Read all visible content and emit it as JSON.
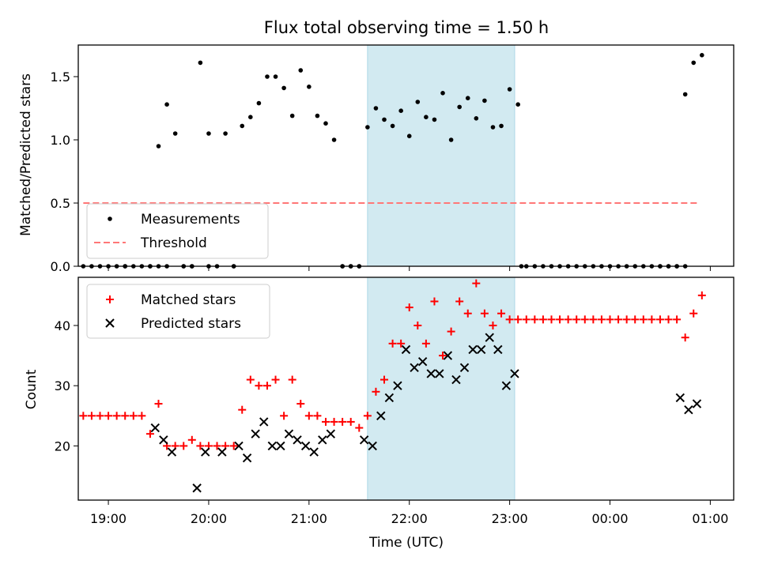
{
  "chart_data": [
    {
      "type": "scatter",
      "title": "Flux total observing time = 1.50 h",
      "xlabel": "",
      "ylabel": "Matched/Predicted stars",
      "ylim": [
        0,
        1.75
      ],
      "yticks": [
        "0.0",
        "0.5",
        "1.0",
        "1.5"
      ],
      "xlim": [
        "18:42",
        "01:14"
      ],
      "legend_position": "lower-left",
      "highlight_span": {
        "x_start": "21:35",
        "x_end": "23:03",
        "color": "#add8e6"
      },
      "threshold": {
        "name": "Threshold",
        "value": 0.5,
        "x_start": "18:45",
        "x_end": "00:52",
        "color": "#ff7777",
        "style": "dashed"
      },
      "series": [
        {
          "name": "Measurements",
          "color": "#000000",
          "marker": "dot",
          "x": [
            "18:45",
            "18:50",
            "18:55",
            "19:00",
            "19:05",
            "19:10",
            "19:15",
            "19:20",
            "19:25",
            "19:30",
            "19:35",
            "19:40",
            "19:45",
            "19:50",
            "19:55",
            "20:00",
            "20:05",
            "20:10",
            "20:15",
            "20:20",
            "20:25",
            "20:30",
            "20:35",
            "20:40",
            "20:45",
            "20:50",
            "20:55",
            "21:00",
            "21:05",
            "21:10",
            "21:15",
            "21:20",
            "21:25",
            "21:30",
            "21:35",
            "21:40",
            "21:45",
            "21:50",
            "21:55",
            "22:00",
            "22:05",
            "22:10",
            "22:15",
            "22:20",
            "22:25",
            "22:30",
            "22:35",
            "22:40",
            "22:45",
            "22:50",
            "22:55",
            "23:00",
            "23:05",
            "23:10",
            "23:15",
            "23:20",
            "23:25",
            "23:30",
            "23:35",
            "23:40",
            "23:45",
            "23:50",
            "23:55",
            "00:00",
            "00:05",
            "00:10",
            "00:15",
            "00:20",
            "00:25",
            "00:30",
            "00:35",
            "00:40",
            "00:45",
            "00:50",
            "00:55"
          ],
          "y": [
            0,
            0,
            0,
            0,
            0,
            0,
            0,
            0,
            0,
            0.95,
            1.28,
            1.05,
            0,
            0,
            1.61,
            1.05,
            0,
            1.05,
            0,
            1.11,
            1.18,
            1.29,
            1.5,
            1.5,
            1.41,
            1.19,
            1.55,
            1.42,
            1.19,
            1.13,
            1.0,
            0,
            0,
            0,
            1.1,
            1.25,
            1.16,
            1.11,
            1.23,
            1.03,
            1.3,
            1.18,
            1.16,
            1.37,
            1.0,
            1.26,
            1.33,
            1.17,
            1.31,
            1.1,
            1.11,
            1.4,
            1.28,
            0,
            0,
            0,
            0,
            0,
            0,
            0,
            0,
            0,
            0,
            0,
            0,
            0,
            0,
            0,
            0,
            0,
            0,
            0,
            1.36,
            1.61,
            1.67
          ],
          "x_extra": [
            "19:10",
            "19:25",
            "19:30",
            "19:35",
            "19:45",
            "19:50",
            "20:00",
            "20:15",
            "21:20",
            "21:25",
            "21:30",
            "23:07",
            "00:30",
            "00:35",
            "00:40",
            "00:45"
          ],
          "y_extra": [
            0,
            0,
            0,
            0,
            0,
            0,
            0,
            0,
            0,
            0,
            0,
            0,
            0,
            0,
            0,
            0
          ]
        }
      ]
    },
    {
      "type": "scatter",
      "title": "",
      "xlabel": "Time (UTC)",
      "ylabel": "Count",
      "ylim": [
        11,
        48
      ],
      "yticks": [
        "20",
        "30",
        "40"
      ],
      "xticks": [
        "19:00",
        "20:00",
        "21:00",
        "22:00",
        "23:00",
        "00:00",
        "01:00"
      ],
      "xlim": [
        "18:42",
        "01:14"
      ],
      "legend_position": "upper-left",
      "highlight_span": {
        "x_start": "21:35",
        "x_end": "23:03",
        "color": "#add8e6"
      },
      "series": [
        {
          "name": "Matched stars",
          "color": "#ff0000",
          "marker": "plus",
          "x": [
            "18:45",
            "18:50",
            "18:55",
            "19:00",
            "19:05",
            "19:10",
            "19:15",
            "19:20",
            "19:25",
            "19:30",
            "19:35",
            "19:40",
            "19:45",
            "19:50",
            "19:55",
            "20:00",
            "20:05",
            "20:10",
            "20:15",
            "20:20",
            "20:25",
            "20:30",
            "20:35",
            "20:40",
            "20:45",
            "20:50",
            "20:55",
            "21:00",
            "21:05",
            "21:10",
            "21:15",
            "21:20",
            "21:25",
            "21:30",
            "21:35",
            "21:40",
            "21:45",
            "21:50",
            "21:55",
            "22:00",
            "22:05",
            "22:10",
            "22:15",
            "22:20",
            "22:25",
            "22:30",
            "22:35",
            "22:40",
            "22:45",
            "22:50",
            "22:55",
            "23:00",
            "23:05",
            "23:10",
            "23:15",
            "23:20",
            "23:25",
            "23:30",
            "23:35",
            "23:40",
            "23:45",
            "23:50",
            "23:55",
            "00:00",
            "00:05",
            "00:10",
            "00:15",
            "00:20",
            "00:25",
            "00:30",
            "00:35",
            "00:40",
            "00:45",
            "00:50",
            "00:55"
          ],
          "y": [
            25,
            25,
            25,
            25,
            25,
            25,
            25,
            25,
            22,
            27,
            20,
            20,
            20,
            21,
            20,
            20,
            20,
            20,
            20,
            26,
            31,
            30,
            30,
            31,
            25,
            31,
            27,
            25,
            25,
            24,
            24,
            24,
            24,
            23,
            25,
            29,
            31,
            37,
            37,
            43,
            40,
            37,
            44,
            35,
            39,
            44,
            42,
            47,
            42,
            40,
            42,
            41,
            41,
            41,
            41,
            41,
            41,
            41,
            41,
            41,
            41,
            41,
            41,
            41,
            41,
            41,
            41,
            41,
            41,
            41,
            41,
            41,
            38,
            42,
            45
          ]
        },
        {
          "name": "Predicted stars",
          "color": "#000000",
          "marker": "x",
          "x": [
            "19:28",
            "19:33",
            "19:38",
            "19:53",
            "19:58",
            "20:08",
            "20:18",
            "20:23",
            "20:28",
            "20:33",
            "20:38",
            "20:43",
            "20:48",
            "20:53",
            "20:58",
            "21:03",
            "21:08",
            "21:13",
            "21:33",
            "21:38",
            "21:43",
            "21:48",
            "21:53",
            "21:58",
            "22:03",
            "22:08",
            "22:13",
            "22:18",
            "22:23",
            "22:28",
            "22:33",
            "22:38",
            "22:43",
            "22:48",
            "22:53",
            "22:58",
            "23:03",
            "00:42",
            "00:47",
            "00:52"
          ],
          "y": [
            23,
            21,
            19,
            13,
            19,
            19,
            20,
            18,
            22,
            24,
            20,
            20,
            22,
            21,
            20,
            19,
            21,
            22,
            21,
            20,
            25,
            28,
            30,
            36,
            33,
            34,
            32,
            32,
            35,
            31,
            33,
            36,
            36,
            38,
            36,
            30,
            32,
            28,
            26,
            27
          ]
        }
      ]
    }
  ]
}
